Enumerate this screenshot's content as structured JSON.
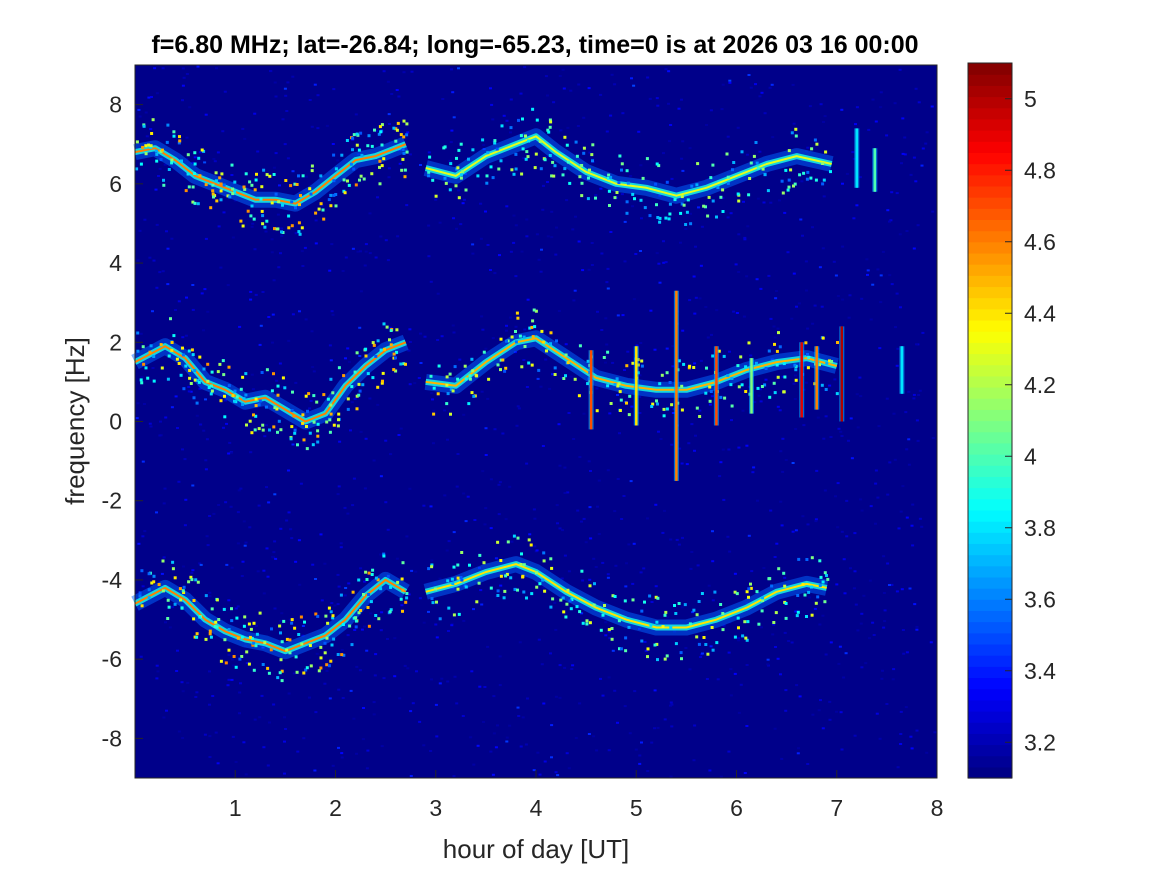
{
  "chart_data": {
    "type": "heatmap",
    "title": "f=6.80 MHz;  lat=-26.84; long=-65.23, time=0 is at 2026 03 16 00:00",
    "xlabel": "hour of day [UT]",
    "ylabel": "frequency [Hz]",
    "xlim": [
      0,
      8
    ],
    "ylim": [
      -9,
      9
    ],
    "x_ticks": [
      1,
      2,
      3,
      4,
      5,
      6,
      7,
      8
    ],
    "y_ticks": [
      -8,
      -6,
      -4,
      -2,
      0,
      2,
      4,
      6,
      8
    ],
    "colorbar": {
      "colormap": "jet",
      "clim": [
        3.1,
        5.1
      ],
      "ticks": [
        3.2,
        3.4,
        3.6,
        3.8,
        4,
        4.2,
        4.4,
        4.6,
        4.8,
        5
      ]
    },
    "grid": false,
    "series": [
      {
        "x": [
          0,
          0.2,
          0.4,
          0.6,
          0.8,
          1.0,
          1.2,
          1.4,
          1.6,
          1.8,
          2.0,
          2.2,
          2.4,
          2.6,
          2.7
        ],
        "values": [
          6.8,
          6.9,
          6.6,
          6.2,
          6.0,
          5.8,
          5.6,
          5.6,
          5.5,
          5.8,
          6.2,
          6.6,
          6.7,
          6.9,
          7.0
        ],
        "peak": 4.6
      },
      {
        "x": [
          2.9,
          3.2,
          3.5,
          3.8,
          4.0,
          4.2,
          4.5,
          4.8,
          5.1,
          5.4,
          5.7,
          6.0,
          6.3,
          6.6,
          6.95
        ],
        "values": [
          6.4,
          6.2,
          6.7,
          7.0,
          7.2,
          6.8,
          6.3,
          6.0,
          5.9,
          5.7,
          5.9,
          6.2,
          6.5,
          6.7,
          6.5
        ],
        "peak": 4.3
      },
      {
        "x": [
          0,
          0.3,
          0.5,
          0.7,
          0.9,
          1.1,
          1.3,
          1.5,
          1.7,
          1.9,
          2.1,
          2.3,
          2.5,
          2.7
        ],
        "values": [
          1.5,
          1.9,
          1.6,
          1.0,
          0.8,
          0.5,
          0.6,
          0.3,
          0.0,
          0.2,
          0.9,
          1.4,
          1.8,
          2.0
        ],
        "peak": 4.6
      },
      {
        "x": [
          2.9,
          3.2,
          3.5,
          3.8,
          4.0,
          4.3,
          4.6,
          4.9,
          5.2,
          5.5,
          5.8,
          6.1,
          6.4,
          6.7,
          7.0
        ],
        "values": [
          1.0,
          0.9,
          1.5,
          2.0,
          2.1,
          1.6,
          1.1,
          0.9,
          0.8,
          0.8,
          1.0,
          1.3,
          1.5,
          1.6,
          1.4
        ],
        "peak": 4.5
      },
      {
        "x": [
          0,
          0.3,
          0.5,
          0.7,
          0.9,
          1.1,
          1.3,
          1.5,
          1.7,
          1.9,
          2.1,
          2.3,
          2.5,
          2.7
        ],
        "values": [
          -4.6,
          -4.2,
          -4.5,
          -5.0,
          -5.3,
          -5.5,
          -5.6,
          -5.8,
          -5.6,
          -5.4,
          -5.0,
          -4.4,
          -4.0,
          -4.3
        ],
        "peak": 4.6
      },
      {
        "x": [
          2.9,
          3.2,
          3.5,
          3.8,
          4.0,
          4.3,
          4.6,
          4.9,
          5.2,
          5.5,
          5.8,
          6.1,
          6.4,
          6.7,
          6.9
        ],
        "values": [
          -4.3,
          -4.1,
          -3.8,
          -3.6,
          -3.8,
          -4.3,
          -4.7,
          -5.0,
          -5.2,
          -5.2,
          -5.0,
          -4.7,
          -4.3,
          -4.1,
          -4.2
        ],
        "peak": 4.4
      }
    ],
    "spikes": [
      {
        "x": 4.55,
        "y0": -0.2,
        "y1": 1.8,
        "peak": 4.7
      },
      {
        "x": 5.0,
        "y0": -0.1,
        "y1": 1.9,
        "peak": 4.4
      },
      {
        "x": 5.4,
        "y0": -1.5,
        "y1": 3.3,
        "peak": 4.6
      },
      {
        "x": 5.8,
        "y0": -0.1,
        "y1": 1.9,
        "peak": 4.7
      },
      {
        "x": 6.15,
        "y0": 0.2,
        "y1": 1.6,
        "peak": 4.1
      },
      {
        "x": 6.65,
        "y0": 0.1,
        "y1": 2.0,
        "peak": 4.9
      },
      {
        "x": 6.8,
        "y0": 0.3,
        "y1": 1.9,
        "peak": 4.6
      },
      {
        "x": 7.05,
        "y0": 0.0,
        "y1": 2.4,
        "peak": 5.0
      },
      {
        "x": 7.2,
        "y0": 5.9,
        "y1": 7.4,
        "peak": 3.8
      },
      {
        "x": 7.38,
        "y0": 5.8,
        "y1": 6.9,
        "peak": 4.0
      },
      {
        "x": 7.65,
        "y0": 0.7,
        "y1": 1.9,
        "peak": 3.8
      }
    ]
  }
}
